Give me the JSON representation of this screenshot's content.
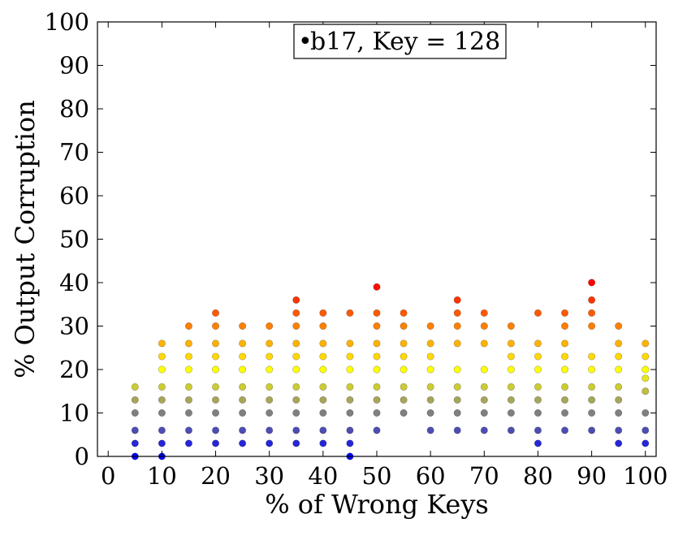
{
  "chart_data": {
    "type": "scatter",
    "title": "",
    "xlabel": "% of Wrong Keys",
    "ylabel": "% Output Corruption",
    "xlim": [
      -2,
      102
    ],
    "ylim": [
      0,
      100
    ],
    "xticks": [
      0,
      10,
      20,
      30,
      40,
      50,
      60,
      70,
      80,
      90,
      100
    ],
    "yticks": [
      0,
      10,
      20,
      30,
      40,
      50,
      60,
      70,
      80,
      90,
      100
    ],
    "grid": false,
    "legend": {
      "position": "top-center",
      "marker": "•",
      "text": "b17, Key = 128"
    },
    "color_scale": {
      "low": "#0000ff",
      "mid": "#ffff00",
      "high": "#ff0000",
      "min": 0,
      "max": 40
    },
    "points": [
      {
        "x": 5,
        "y": 0
      },
      {
        "x": 5,
        "y": 3
      },
      {
        "x": 5,
        "y": 6
      },
      {
        "x": 5,
        "y": 10
      },
      {
        "x": 5,
        "y": 13
      },
      {
        "x": 5,
        "y": 16
      },
      {
        "x": 10,
        "y": 0
      },
      {
        "x": 10,
        "y": 3
      },
      {
        "x": 10,
        "y": 6
      },
      {
        "x": 10,
        "y": 10
      },
      {
        "x": 10,
        "y": 13
      },
      {
        "x": 10,
        "y": 16
      },
      {
        "x": 10,
        "y": 20
      },
      {
        "x": 10,
        "y": 23
      },
      {
        "x": 10,
        "y": 26
      },
      {
        "x": 15,
        "y": 3
      },
      {
        "x": 15,
        "y": 6
      },
      {
        "x": 15,
        "y": 10
      },
      {
        "x": 15,
        "y": 13
      },
      {
        "x": 15,
        "y": 16
      },
      {
        "x": 15,
        "y": 20
      },
      {
        "x": 15,
        "y": 23
      },
      {
        "x": 15,
        "y": 26
      },
      {
        "x": 15,
        "y": 30
      },
      {
        "x": 20,
        "y": 3
      },
      {
        "x": 20,
        "y": 6
      },
      {
        "x": 20,
        "y": 10
      },
      {
        "x": 20,
        "y": 13
      },
      {
        "x": 20,
        "y": 16
      },
      {
        "x": 20,
        "y": 20
      },
      {
        "x": 20,
        "y": 23
      },
      {
        "x": 20,
        "y": 26
      },
      {
        "x": 20,
        "y": 30
      },
      {
        "x": 20,
        "y": 33
      },
      {
        "x": 25,
        "y": 3
      },
      {
        "x": 25,
        "y": 6
      },
      {
        "x": 25,
        "y": 10
      },
      {
        "x": 25,
        "y": 13
      },
      {
        "x": 25,
        "y": 16
      },
      {
        "x": 25,
        "y": 20
      },
      {
        "x": 25,
        "y": 23
      },
      {
        "x": 25,
        "y": 26
      },
      {
        "x": 25,
        "y": 30
      },
      {
        "x": 30,
        "y": 3
      },
      {
        "x": 30,
        "y": 6
      },
      {
        "x": 30,
        "y": 10
      },
      {
        "x": 30,
        "y": 13
      },
      {
        "x": 30,
        "y": 16
      },
      {
        "x": 30,
        "y": 20
      },
      {
        "x": 30,
        "y": 23
      },
      {
        "x": 30,
        "y": 26
      },
      {
        "x": 30,
        "y": 30
      },
      {
        "x": 35,
        "y": 3
      },
      {
        "x": 35,
        "y": 6
      },
      {
        "x": 35,
        "y": 10
      },
      {
        "x": 35,
        "y": 13
      },
      {
        "x": 35,
        "y": 16
      },
      {
        "x": 35,
        "y": 20
      },
      {
        "x": 35,
        "y": 23
      },
      {
        "x": 35,
        "y": 26
      },
      {
        "x": 35,
        "y": 30
      },
      {
        "x": 35,
        "y": 33
      },
      {
        "x": 35,
        "y": 36
      },
      {
        "x": 40,
        "y": 3
      },
      {
        "x": 40,
        "y": 6
      },
      {
        "x": 40,
        "y": 10
      },
      {
        "x": 40,
        "y": 13
      },
      {
        "x": 40,
        "y": 16
      },
      {
        "x": 40,
        "y": 20
      },
      {
        "x": 40,
        "y": 23
      },
      {
        "x": 40,
        "y": 26
      },
      {
        "x": 40,
        "y": 30
      },
      {
        "x": 40,
        "y": 33
      },
      {
        "x": 45,
        "y": 0
      },
      {
        "x": 45,
        "y": 3
      },
      {
        "x": 45,
        "y": 6
      },
      {
        "x": 45,
        "y": 10
      },
      {
        "x": 45,
        "y": 13
      },
      {
        "x": 45,
        "y": 16
      },
      {
        "x": 45,
        "y": 20
      },
      {
        "x": 45,
        "y": 23
      },
      {
        "x": 45,
        "y": 26
      },
      {
        "x": 45,
        "y": 33
      },
      {
        "x": 50,
        "y": 6
      },
      {
        "x": 50,
        "y": 10
      },
      {
        "x": 50,
        "y": 13
      },
      {
        "x": 50,
        "y": 16
      },
      {
        "x": 50,
        "y": 20
      },
      {
        "x": 50,
        "y": 23
      },
      {
        "x": 50,
        "y": 26
      },
      {
        "x": 50,
        "y": 30
      },
      {
        "x": 50,
        "y": 33
      },
      {
        "x": 50,
        "y": 39
      },
      {
        "x": 55,
        "y": 10
      },
      {
        "x": 55,
        "y": 13
      },
      {
        "x": 55,
        "y": 16
      },
      {
        "x": 55,
        "y": 20
      },
      {
        "x": 55,
        "y": 23
      },
      {
        "x": 55,
        "y": 26
      },
      {
        "x": 55,
        "y": 30
      },
      {
        "x": 55,
        "y": 33
      },
      {
        "x": 60,
        "y": 6
      },
      {
        "x": 60,
        "y": 10
      },
      {
        "x": 60,
        "y": 13
      },
      {
        "x": 60,
        "y": 16
      },
      {
        "x": 60,
        "y": 20
      },
      {
        "x": 60,
        "y": 23
      },
      {
        "x": 60,
        "y": 26
      },
      {
        "x": 60,
        "y": 30
      },
      {
        "x": 65,
        "y": 6
      },
      {
        "x": 65,
        "y": 10
      },
      {
        "x": 65,
        "y": 13
      },
      {
        "x": 65,
        "y": 16
      },
      {
        "x": 65,
        "y": 20
      },
      {
        "x": 65,
        "y": 26
      },
      {
        "x": 65,
        "y": 30
      },
      {
        "x": 65,
        "y": 33
      },
      {
        "x": 65,
        "y": 36
      },
      {
        "x": 70,
        "y": 6
      },
      {
        "x": 70,
        "y": 10
      },
      {
        "x": 70,
        "y": 13
      },
      {
        "x": 70,
        "y": 16
      },
      {
        "x": 70,
        "y": 20
      },
      {
        "x": 70,
        "y": 26
      },
      {
        "x": 70,
        "y": 30
      },
      {
        "x": 70,
        "y": 33
      },
      {
        "x": 75,
        "y": 6
      },
      {
        "x": 75,
        "y": 10
      },
      {
        "x": 75,
        "y": 13
      },
      {
        "x": 75,
        "y": 16
      },
      {
        "x": 75,
        "y": 20
      },
      {
        "x": 75,
        "y": 23
      },
      {
        "x": 75,
        "y": 26
      },
      {
        "x": 75,
        "y": 30
      },
      {
        "x": 80,
        "y": 3
      },
      {
        "x": 80,
        "y": 6
      },
      {
        "x": 80,
        "y": 10
      },
      {
        "x": 80,
        "y": 13
      },
      {
        "x": 80,
        "y": 16
      },
      {
        "x": 80,
        "y": 20
      },
      {
        "x": 80,
        "y": 23
      },
      {
        "x": 80,
        "y": 26
      },
      {
        "x": 80,
        "y": 33
      },
      {
        "x": 85,
        "y": 6
      },
      {
        "x": 85,
        "y": 10
      },
      {
        "x": 85,
        "y": 13
      },
      {
        "x": 85,
        "y": 16
      },
      {
        "x": 85,
        "y": 20
      },
      {
        "x": 85,
        "y": 23
      },
      {
        "x": 85,
        "y": 26
      },
      {
        "x": 85,
        "y": 30
      },
      {
        "x": 85,
        "y": 33
      },
      {
        "x": 90,
        "y": 6
      },
      {
        "x": 90,
        "y": 10
      },
      {
        "x": 90,
        "y": 13
      },
      {
        "x": 90,
        "y": 16
      },
      {
        "x": 90,
        "y": 20
      },
      {
        "x": 90,
        "y": 23
      },
      {
        "x": 90,
        "y": 30
      },
      {
        "x": 90,
        "y": 33
      },
      {
        "x": 90,
        "y": 36
      },
      {
        "x": 90,
        "y": 40
      },
      {
        "x": 95,
        "y": 3
      },
      {
        "x": 95,
        "y": 6
      },
      {
        "x": 95,
        "y": 10
      },
      {
        "x": 95,
        "y": 13
      },
      {
        "x": 95,
        "y": 16
      },
      {
        "x": 95,
        "y": 20
      },
      {
        "x": 95,
        "y": 23
      },
      {
        "x": 95,
        "y": 26
      },
      {
        "x": 95,
        "y": 30
      },
      {
        "x": 100,
        "y": 3
      },
      {
        "x": 100,
        "y": 6
      },
      {
        "x": 100,
        "y": 10
      },
      {
        "x": 100,
        "y": 15
      },
      {
        "x": 100,
        "y": 18
      },
      {
        "x": 100,
        "y": 20
      },
      {
        "x": 100,
        "y": 23
      },
      {
        "x": 100,
        "y": 26
      }
    ]
  }
}
